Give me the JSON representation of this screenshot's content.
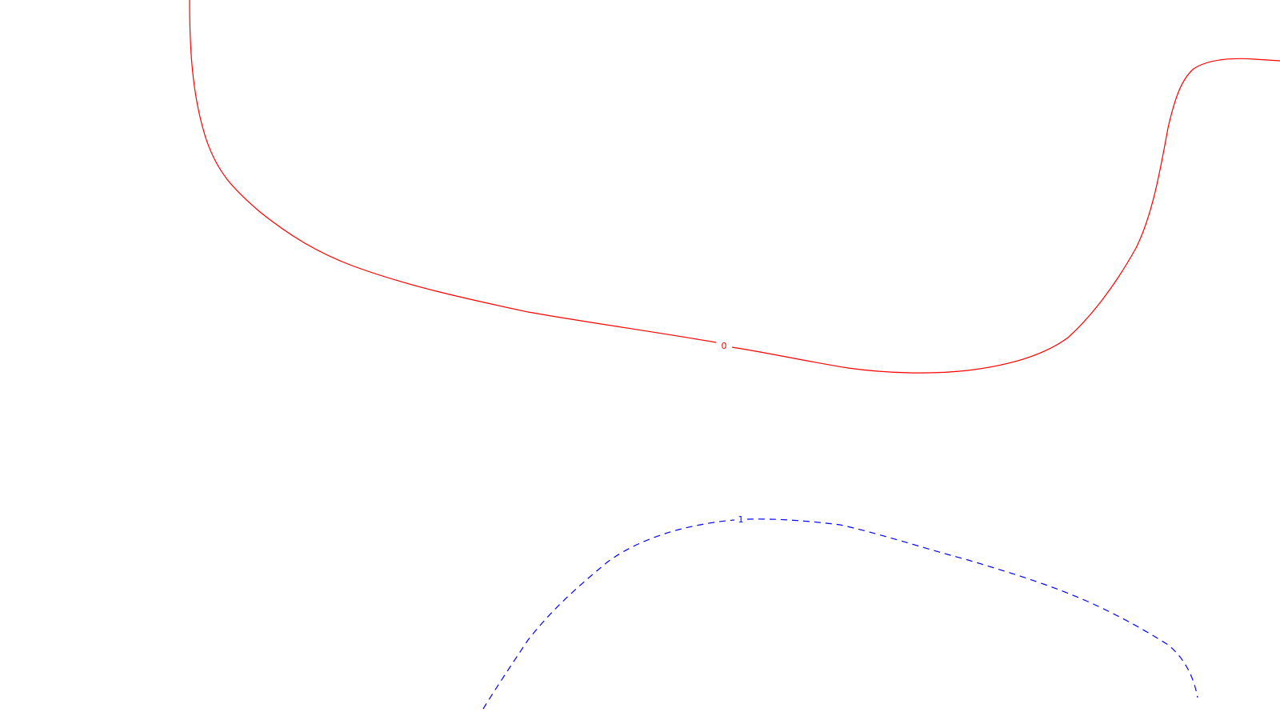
{
  "background": "#ffffff",
  "contours": [
    {
      "id": "contour-0",
      "label": "0",
      "color": "#ff0000",
      "style": "solid"
    },
    {
      "id": "contour-1",
      "label": "1",
      "color": "#0000ff",
      "style": "dashed"
    }
  ]
}
